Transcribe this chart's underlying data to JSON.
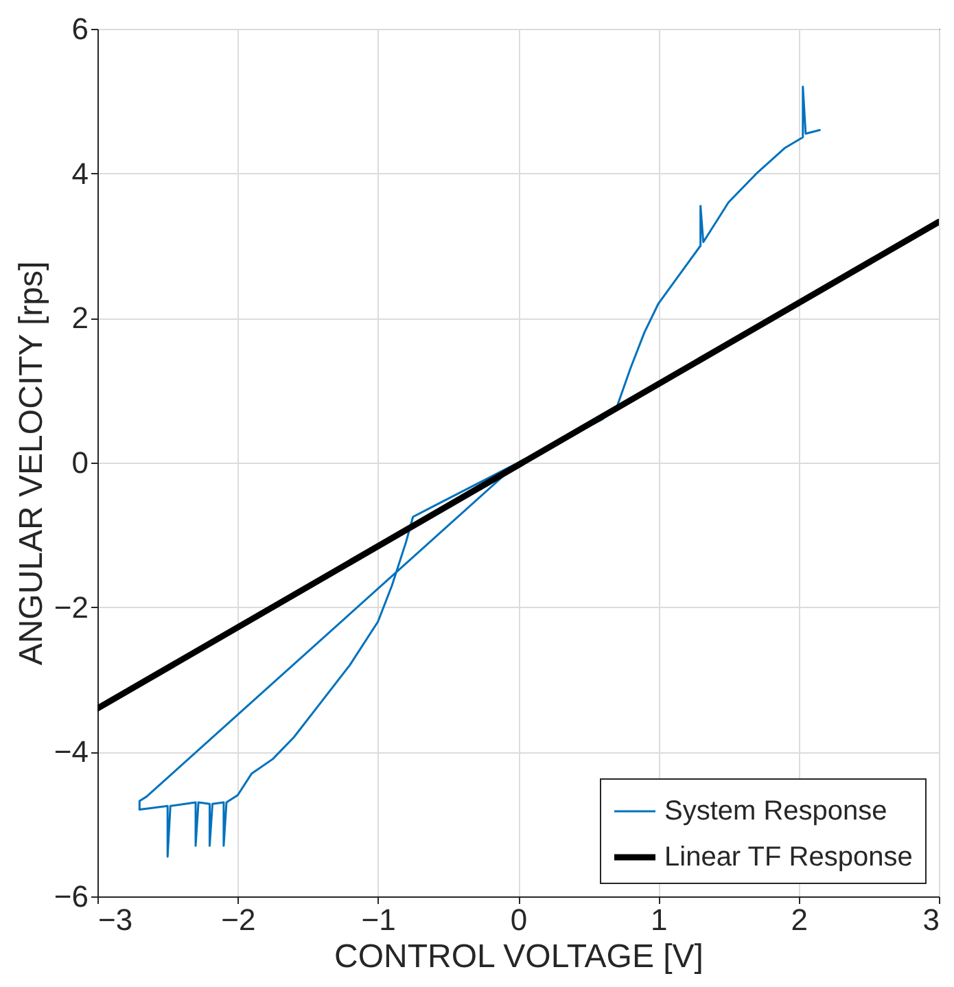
{
  "chart_data": {
    "type": "line",
    "xlabel": "CONTROL VOLTAGE [V]",
    "ylabel": "ANGULAR VELOCITY [rps]",
    "xlim": [
      -3,
      3
    ],
    "xticks": [
      -3,
      -2,
      -1,
      0,
      1,
      2,
      3
    ],
    "ylim": [
      -6,
      6
    ],
    "yticks": [
      -6,
      -4,
      -2,
      0,
      2,
      4,
      6
    ],
    "grid": true,
    "legend": "bottom right",
    "line_style": "solid",
    "series": [
      {
        "name": "System Response",
        "color": "#0072bd",
        "x": [
          0,
          -2.65,
          -2.7,
          -2.7,
          -2.5,
          -2.5,
          -2.48,
          -2.3,
          -2.3,
          -2.28,
          -2.2,
          -2.2,
          -2.18,
          -2.1,
          -2.1,
          -2.08,
          -2.0,
          -1.9,
          -1.75,
          -1.6,
          -1.4,
          -1.2,
          -1.0,
          -0.9,
          -0.8,
          -0.75,
          -0.6,
          -0.4,
          -0.2,
          0,
          0.3,
          0.6,
          0.7,
          0.8,
          0.9,
          1.0,
          1.15,
          1.3,
          1.3,
          1.32,
          1.5,
          1.7,
          1.9,
          2.03,
          2.03,
          2.05,
          2.15
        ],
        "values": [
          0,
          -4.62,
          -4.68,
          -4.8,
          -4.75,
          -5.45,
          -4.75,
          -4.7,
          -5.3,
          -4.7,
          -4.72,
          -5.3,
          -4.72,
          -4.7,
          -5.3,
          -4.7,
          -4.6,
          -4.3,
          -4.1,
          -3.8,
          -3.3,
          -2.8,
          -2.2,
          -1.7,
          -1.1,
          -0.75,
          -0.6,
          -0.4,
          -0.2,
          0,
          0.3,
          0.6,
          0.75,
          1.3,
          1.8,
          2.2,
          2.6,
          3.0,
          3.55,
          3.05,
          3.6,
          4.0,
          4.35,
          4.5,
          5.2,
          4.55,
          4.6
        ]
      },
      {
        "name": "Linear TF Response",
        "color": "#000000",
        "x": [
          -3,
          3
        ],
        "values": [
          -3.4,
          3.33
        ]
      }
    ]
  }
}
